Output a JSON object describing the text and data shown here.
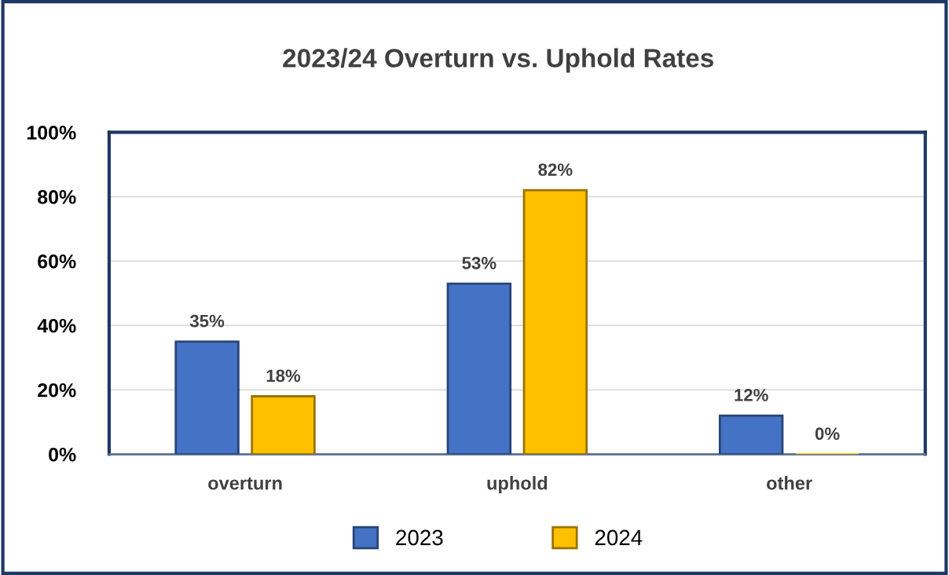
{
  "chart_data": {
    "type": "bar",
    "title": "2023/24 Overturn vs. Uphold Rates",
    "categories": [
      "overturn",
      "uphold",
      "other"
    ],
    "series": [
      {
        "name": "2023",
        "color": "#4472c4",
        "values": [
          35,
          53,
          12
        ],
        "value_labels": [
          "35%",
          "53%",
          "12%"
        ]
      },
      {
        "name": "2024",
        "color": "#ffc000",
        "values": [
          18,
          82,
          0
        ],
        "value_labels": [
          "18%",
          "82%",
          "0%"
        ]
      }
    ],
    "ylim": [
      0,
      100
    ],
    "yticks": [
      {
        "value": 0,
        "label": "0%"
      },
      {
        "value": 20,
        "label": "20%"
      },
      {
        "value": 40,
        "label": "40%"
      },
      {
        "value": 60,
        "label": "60%"
      },
      {
        "value": 80,
        "label": "80%"
      },
      {
        "value": 100,
        "label": "100%"
      }
    ],
    "grid": "y",
    "legend": "bottom"
  }
}
